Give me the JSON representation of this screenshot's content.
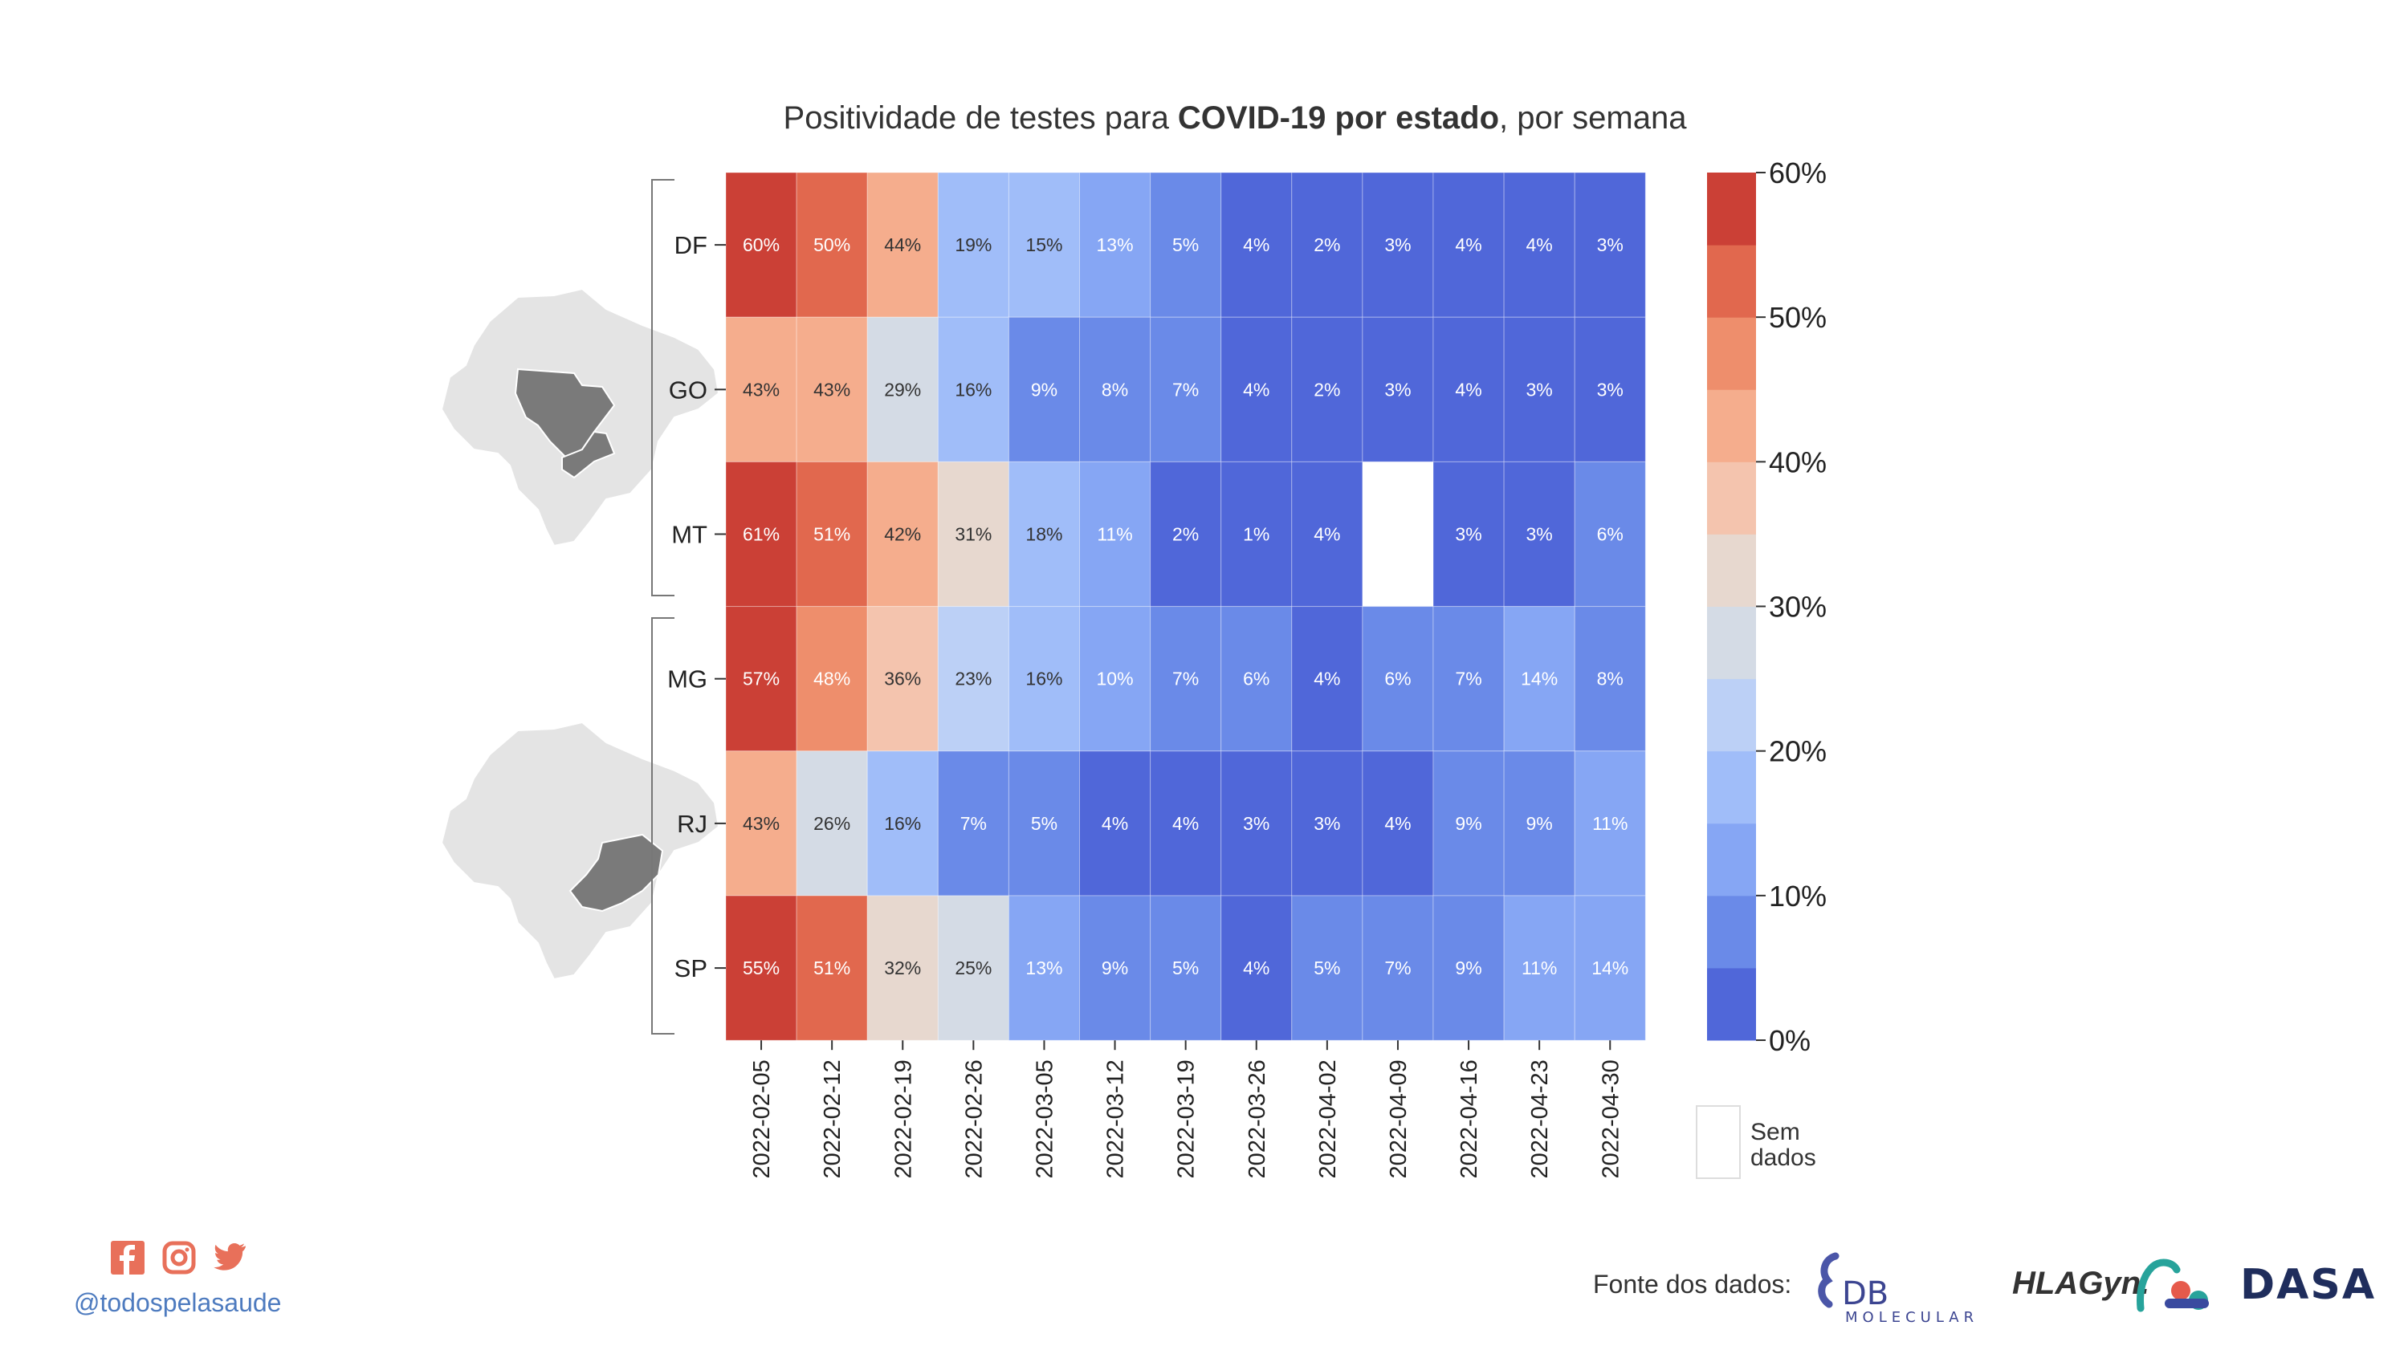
{
  "title": {
    "prefix": "Positividade de testes para ",
    "bold": "COVID-19 por estado",
    "suffix": ", por semana"
  },
  "chart_data": {
    "type": "heatmap",
    "title": "Positividade de testes para COVID-19 por estado, por semana",
    "rows": [
      "DF",
      "GO",
      "MT",
      "MG",
      "RJ",
      "SP"
    ],
    "row_groups": [
      [
        "DF",
        "GO",
        "MT"
      ],
      [
        "MG",
        "RJ",
        "SP"
      ]
    ],
    "columns": [
      "2022-02-05",
      "2022-02-12",
      "2022-02-19",
      "2022-02-26",
      "2022-03-05",
      "2022-03-12",
      "2022-03-19",
      "2022-03-26",
      "2022-04-02",
      "2022-04-09",
      "2022-04-16",
      "2022-04-23",
      "2022-04-30"
    ],
    "values": [
      [
        60,
        50,
        44,
        19,
        15,
        13,
        5,
        4,
        2,
        3,
        4,
        4,
        3
      ],
      [
        43,
        43,
        29,
        16,
        9,
        8,
        7,
        4,
        2,
        3,
        4,
        3,
        3
      ],
      [
        61,
        51,
        42,
        31,
        18,
        11,
        2,
        1,
        4,
        null,
        3,
        3,
        6
      ],
      [
        57,
        48,
        36,
        23,
        16,
        10,
        7,
        6,
        4,
        6,
        7,
        14,
        8
      ],
      [
        43,
        26,
        16,
        7,
        5,
        4,
        4,
        3,
        3,
        4,
        9,
        9,
        11
      ],
      [
        55,
        51,
        32,
        25,
        13,
        9,
        5,
        4,
        5,
        7,
        9,
        11,
        14
      ]
    ],
    "unit": "%",
    "colorbar": {
      "range": [
        0,
        60
      ],
      "ticks": [
        "0%",
        "10%",
        "20%",
        "30%",
        "40%",
        "50%",
        "60%"
      ],
      "bins": 12,
      "colors": [
        "#5067d9",
        "#6a8ae8",
        "#86a6f4",
        "#a0bdf9",
        "#bcd0f6",
        "#d4dbe5",
        "#e7d8cf",
        "#f4c4ae",
        "#f5ad8d",
        "#ee8e6c",
        "#e1684e",
        "#cb4036"
      ]
    },
    "missing_label": "Sem dados"
  },
  "footer": {
    "handle": "@todospelasaude",
    "source_label": "Fonte dos dados:",
    "social_icons": [
      "facebook-icon",
      "instagram-icon",
      "twitter-icon"
    ],
    "logos": {
      "db": "DB",
      "db_sub": "MOLECULAR",
      "hla": "HLAGyn.",
      "dasa": "DASA"
    }
  }
}
